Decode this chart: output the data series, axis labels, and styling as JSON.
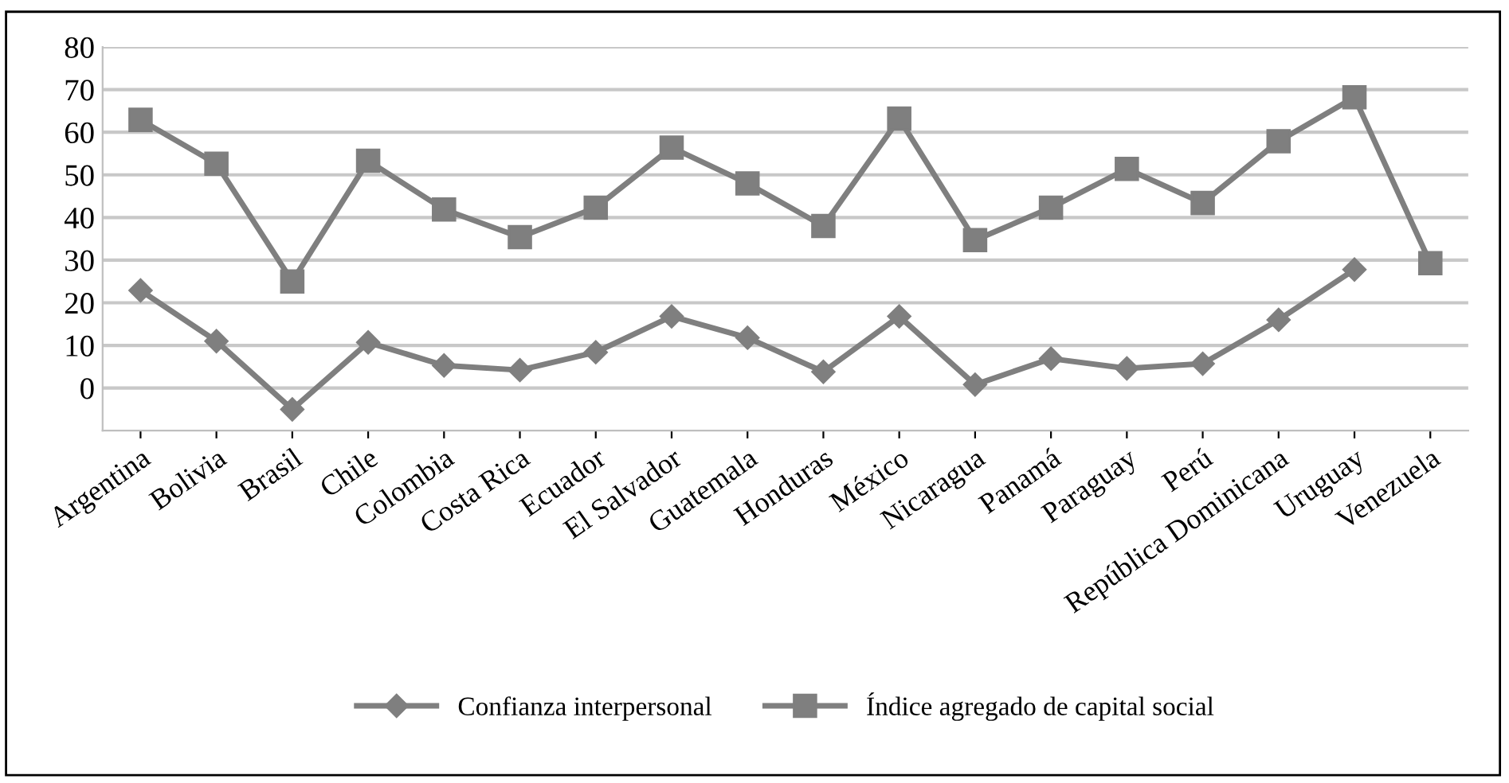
{
  "chart_data": {
    "type": "line",
    "categories": [
      "Argentina",
      "Bolivia",
      "Brasil",
      "Chile",
      "Colombia",
      "Costa Rica",
      "Ecuador",
      "El Salvador",
      "Guatemala",
      "Honduras",
      "México",
      "Nicaragua",
      "Panamá",
      "Paraguay",
      "Perú",
      "República Dominicana",
      "Uruguay",
      "Venezuela"
    ],
    "series": [
      {
        "name": "Confianza interpersonal",
        "color": "#7f7f7f",
        "marker": "diamond",
        "values": [
          22.9,
          11,
          -5,
          10.7,
          5.3,
          4.2,
          8.4,
          16.8,
          11.8,
          3.8,
          16.8,
          0.8,
          6.9,
          4.6,
          5.7,
          16,
          27.8,
          null
        ]
      },
      {
        "name": "Índice agregado de capital social",
        "color": "#7f7f7f",
        "marker": "square",
        "values": [
          62.9,
          52.6,
          25,
          53.3,
          41.9,
          35.4,
          42.3,
          56.4,
          48,
          38,
          63.2,
          34.7,
          42.3,
          51.4,
          43.4,
          57.9,
          68.2,
          29.3
        ]
      }
    ],
    "ylim": [
      -10,
      80
    ],
    "yticks": [
      0,
      10,
      20,
      30,
      40,
      50,
      60,
      70,
      80
    ],
    "grid": "y",
    "legend": "bottom",
    "line_style": "solid"
  }
}
